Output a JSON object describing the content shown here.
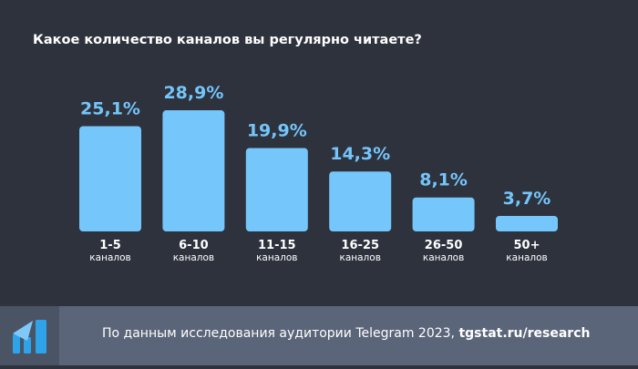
{
  "chart_data": {
    "type": "bar",
    "title": "Какое количество каналов вы регулярно читаете?",
    "categories": [
      "1-5",
      "6-10",
      "11-15",
      "16-25",
      "26-50",
      "50+"
    ],
    "category_sublabel": "каналов",
    "values": [
      25.1,
      28.9,
      19.9,
      14.3,
      8.1,
      3.7
    ],
    "data_labels": [
      "25,1%",
      "28,9%",
      "19,9%",
      "14,3%",
      "8,1%",
      "3,7%"
    ],
    "unit": "%",
    "ylim": [
      0,
      30
    ],
    "grid": false,
    "bar_color": "#74c6fb",
    "label_color": "#75c5fa"
  },
  "footer": {
    "text": "По данным исследования аудитории Telegram 2023, ",
    "link": "tgstat.ru/research",
    "logo_icon": "tgstat-logo-icon"
  },
  "colors": {
    "background": "#2d323d",
    "footer": "#5b6579",
    "logo_box": "#4a5464"
  }
}
